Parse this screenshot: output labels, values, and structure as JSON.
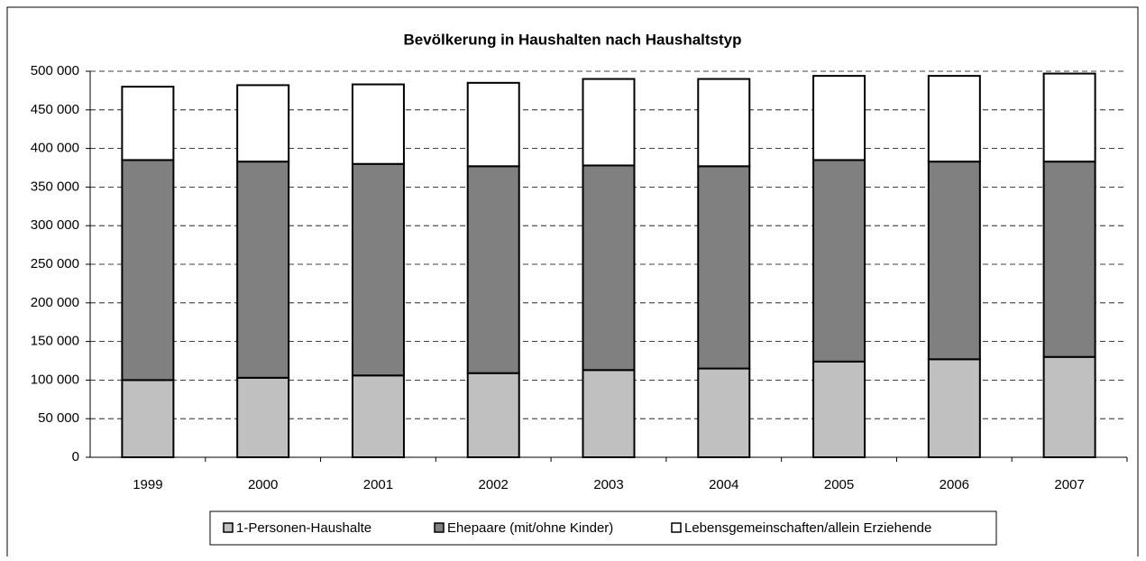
{
  "chart_data": {
    "type": "stacked_bar",
    "title": "Bevölkerung in Haushalten nach Haushaltstyp",
    "categories": [
      "1999",
      "2000",
      "2001",
      "2002",
      "2003",
      "2004",
      "2005",
      "2006",
      "2007"
    ],
    "series": [
      {
        "name": "1-Personen-Haushalte",
        "color": "#c0c0c0",
        "values": [
          100000,
          103000,
          106000,
          109000,
          113000,
          115000,
          124000,
          127000,
          130000
        ]
      },
      {
        "name": "Ehepaare (mit/ohne Kinder)",
        "color": "#808080",
        "values": [
          285000,
          280000,
          274000,
          268000,
          265000,
          262000,
          261000,
          256000,
          253000
        ]
      },
      {
        "name": "Lebensgemeinschaften/allein Erziehende",
        "color": "#ffffff",
        "values": [
          95000,
          99000,
          103000,
          108000,
          112000,
          113000,
          109000,
          111000,
          114000
        ]
      }
    ],
    "ylim": [
      0,
      500000
    ],
    "yticks": [
      0,
      {
        "value": 50000,
        "label": "50 000"
      },
      {
        "value": 100000,
        "label": "100 000"
      },
      {
        "value": 150000,
        "label": "150 000"
      },
      {
        "value": 200000,
        "label": "200 000"
      },
      {
        "value": 250000,
        "label": "250 000"
      },
      {
        "value": 300000,
        "label": "300 000"
      },
      {
        "value": 350000,
        "label": "350 000"
      },
      {
        "value": 400000,
        "label": "400 000"
      },
      {
        "value": 450000,
        "label": "450 000"
      },
      {
        "value": 500000,
        "label": "500 000"
      }
    ],
    "grid": true,
    "legend": "bottom"
  }
}
